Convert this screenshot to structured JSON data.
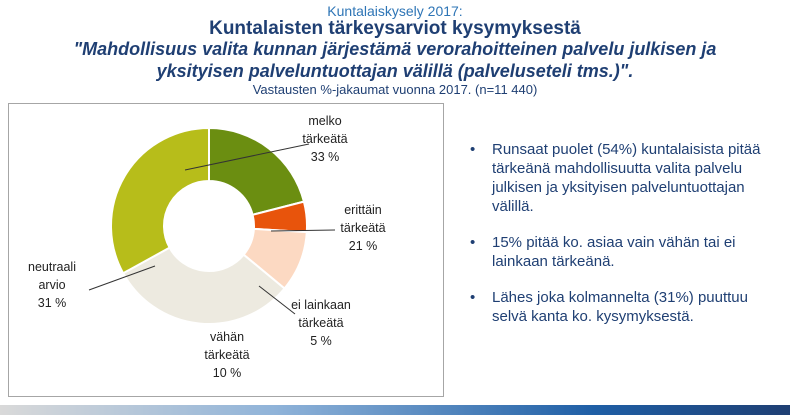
{
  "header": {
    "kicker": "Kuntalaiskysely 2017:",
    "title": "Kuntalaisten tärkeysarviot kysymyksestä",
    "question_line1": "\"Mahdollisuus valita kunnan järjestämä verorahoitteinen palvelu julkisen ja",
    "question_line2": "yksityisen palveluntuottajan välillä (palveluseteli tms.)\".",
    "subtitle": "Vastausten %-jakaumat vuonna 2017. (n=11 440)"
  },
  "chart_data": {
    "type": "pie",
    "donut": true,
    "unit": "%",
    "slices": [
      {
        "label_lines": [
          "erittäin",
          "tärkeätä"
        ],
        "value": 21,
        "value_text": "21 %",
        "color": "#6b8e11"
      },
      {
        "label_lines": [
          "ei lainkaan",
          "tärkeätä"
        ],
        "value": 5,
        "value_text": "5 %",
        "color": "#e8540c"
      },
      {
        "label_lines": [
          "vähän",
          "tärkeätä"
        ],
        "value": 10,
        "value_text": "10 %",
        "color": "#fcd9c2"
      },
      {
        "label_lines": [
          "neutraali",
          "arvio"
        ],
        "value": 31,
        "value_text": "31 %",
        "color": "#edeae0"
      },
      {
        "label_lines": [
          "melko",
          "tärkeätä"
        ],
        "value": 33,
        "value_text": "33 %",
        "color": "#b7bd1a"
      }
    ]
  },
  "bullets": [
    {
      "symbol": "•",
      "text": "Runsaat puolet (54%) kuntalaisista pitää tärkeänä mahdollisuutta valita palvelu julkisen ja yksityisen palveluntuottajan välillä."
    },
    {
      "symbol": "•",
      "text": "15% pitää ko. asiaa vain vähän tai ei lainkaan tärkeänä."
    },
    {
      "symbol": "•",
      "text": "Lähes joka kolmannelta (31%) puuttuu selvä kanta ko. kysymyksestä."
    }
  ]
}
